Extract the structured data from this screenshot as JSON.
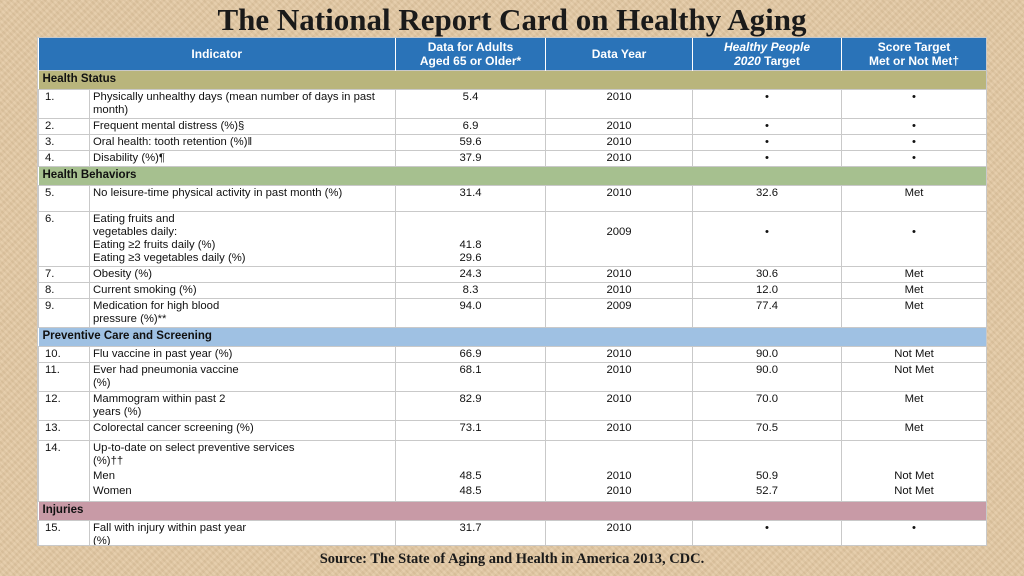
{
  "title": "The National Report Card on Healthy Aging",
  "source": "Source: The State of Aging and Health in America 2013, CDC.",
  "headers": {
    "indicator": "Indicator",
    "data_line1": "Data for Adults",
    "data_line2": "Aged 65 or Older*",
    "year": "Data Year",
    "hp_line1": "Healthy People",
    "hp_line2_italic": "2020",
    "hp_line2_rest": " Target",
    "score_line1": "Score Target",
    "score_line2": "Met or Not Met†"
  },
  "sections": {
    "health_status": "Health Status",
    "health_behaviors": "Health Behaviors",
    "preventive": "Preventive Care and Screening",
    "injuries": "Injuries"
  },
  "rows": [
    {
      "num": "1.",
      "indicator": "Physically unhealthy days (mean number of days in past month)",
      "value": "5.4",
      "year": "2010",
      "target": "•",
      "met": "•"
    },
    {
      "num": "2.",
      "indicator": "Frequent mental distress (%)§",
      "value": "6.9",
      "year": "2010",
      "target": "•",
      "met": "•"
    },
    {
      "num": "3.",
      "indicator": "Oral health: tooth retention (%)‖",
      "value": "59.6",
      "year": "2010",
      "target": "•",
      "met": "•"
    },
    {
      "num": "4.",
      "indicator": "Disability (%)¶",
      "value": "37.9",
      "year": "2010",
      "target": "•",
      "met": "•"
    },
    {
      "num": "5.",
      "indicator": "No leisure-time physical activity in past month (%)",
      "value": "31.4",
      "year": "2010",
      "target": "32.6",
      "met": "Met"
    },
    {
      "num": "6.",
      "indicator_l1": "Eating fruits and",
      "indicator_l2": "vegetables daily:",
      "indicator_l3": "Eating ≥2 fruits daily (%)",
      "indicator_l4": "Eating ≥3 vegetables daily (%)",
      "value1": "41.8",
      "value2": "29.6",
      "year": "2009",
      "target": "•",
      "met": "•"
    },
    {
      "num": "7.",
      "indicator": "Obesity (%)",
      "value": "24.3",
      "year": "2010",
      "target": "30.6",
      "met": "Met"
    },
    {
      "num": "8.",
      "indicator": "Current smoking (%)",
      "value": "8.3",
      "year": "2010",
      "target": "12.0",
      "met": "Met"
    },
    {
      "num": "9.",
      "indicator": "Medication for high blood pressure (%)**",
      "value": "94.0",
      "year": "2009",
      "target": "77.4",
      "met": "Met"
    },
    {
      "num": "10.",
      "indicator": "Flu vaccine in past year (%)",
      "value": "66.9",
      "year": "2010",
      "target": "90.0",
      "met": "Not Met"
    },
    {
      "num": "11.",
      "indicator": "Ever had pneumonia vaccine (%)",
      "value": "68.1",
      "year": "2010",
      "target": "90.0",
      "met": "Not Met"
    },
    {
      "num": "12.",
      "indicator": "Mammogram within past 2 years (%)",
      "value": "82.9",
      "year": "2010",
      "target": "70.0",
      "met": "Met"
    },
    {
      "num": "13.",
      "indicator": "Colorectal cancer screening (%)",
      "value": "73.1",
      "year": "2010",
      "target": "70.5",
      "met": "Met"
    },
    {
      "num": "14.",
      "indicator_l1": "Up-to-date on select preventive services (%)††",
      "indicator_l2": "Men",
      "indicator_l3": "Women",
      "value1": "48.5",
      "value2": "48.5",
      "year1": "2010",
      "year2": "2010",
      "target1": "50.9",
      "target2": "52.7",
      "met1": "Not Met",
      "met2": "Not Met"
    },
    {
      "num": "15.",
      "indicator": "Fall with injury within past year (%)",
      "value": "31.7",
      "year": "2010",
      "target": "•",
      "met": "•"
    }
  ]
}
